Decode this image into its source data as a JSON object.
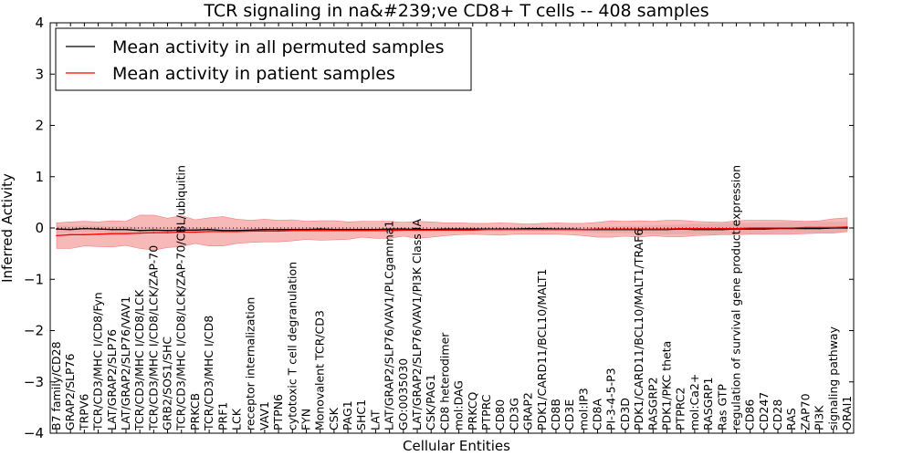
{
  "chart_data": {
    "type": "line",
    "title": "TCR signaling in na&#239;ve CD8+ T cells -- 408 samples",
    "xlabel": "Cellular Entities",
    "ylabel": "Inferred Activity",
    "ylim": [
      -4,
      4
    ],
    "yticks": [
      -4,
      -3,
      -2,
      -1,
      0,
      1,
      2,
      3,
      4
    ],
    "legend": {
      "placement": "top-left",
      "entries": [
        {
          "label": "Mean activity in all permuted samples",
          "color": "#000000"
        },
        {
          "label": "Mean activity in patient samples",
          "color": "#ff0000"
        }
      ]
    },
    "categories": [
      "B7 family/CD28",
      "GRAP2/SLP76",
      "TRPV6",
      "TCR/CD3/MHC I/CD8/Fyn",
      "LAT/GRAP2/SLP76",
      "LAT/GRAP2/SLP76/VAV1",
      "TCR/CD3/MHC I/CD8/LCK",
      "TCR/CD3/MHC I/CD8/LCK/ZAP-70",
      "GRB2/SOS1/SHC",
      "TCR/CD3/MHC I/CD8/LCK/ZAP-70/CBL/ubiquitin",
      "PRKCB",
      "TCR/CD3/MHC I/CD8",
      "PRF1",
      "LCK",
      "receptor internalization",
      "VAV1",
      "PTPN6",
      "cytotoxic T cell degranulation",
      "FYN",
      "Monovalent TCR/CD3",
      "CSK",
      "PAG1",
      "SHC1",
      "LAT",
      "LAT/GRAP2/SLP76/VAV1/PLCgamma1",
      "GO:0035030",
      "LAT/GRAP2/SLP76/VAV1/PI3K Class IA",
      "CSK/PAG1",
      "CD8 heterodimer",
      "mol:DAG",
      "PRKCQ",
      "PTPRC",
      "CD80",
      "CD3G",
      "GRAP2",
      "PDK1/CARD11/BCL10/MALT1",
      "CD8B",
      "CD3E",
      "mol:IP3",
      "CD8A",
      "PI-3-4-5-P3",
      "CD3D",
      "PDK1/CARD11/BCL10/MALT1/TRAF6",
      "RASGRP2",
      "PDK1/PKC theta",
      "PTPRC2",
      "mol:Ca2+",
      "RASGRP1",
      "Ras GTP",
      "regulation of survival gene product expression",
      "CD86",
      "CD247",
      "CD28",
      "RAS",
      "ZAP70",
      "PI3K",
      "signaling pathway",
      "ORAI1"
    ],
    "series": [
      {
        "name": "Mean activity in all permuted samples",
        "color": "#000000",
        "band_color": "#b0b0b0",
        "values": [
          -0.02,
          -0.03,
          -0.01,
          -0.02,
          -0.03,
          -0.03,
          -0.05,
          -0.04,
          -0.05,
          -0.04,
          -0.04,
          -0.03,
          -0.05,
          -0.05,
          -0.04,
          -0.03,
          -0.03,
          -0.03,
          -0.03,
          -0.02,
          -0.03,
          -0.03,
          -0.03,
          -0.03,
          -0.02,
          -0.02,
          -0.03,
          -0.03,
          -0.02,
          -0.02,
          -0.02,
          -0.02,
          -0.02,
          -0.02,
          -0.01,
          -0.01,
          -0.02,
          -0.02,
          -0.03,
          -0.03,
          -0.03,
          -0.03,
          -0.03,
          -0.03,
          -0.03,
          -0.02,
          -0.03,
          -0.03,
          -0.03,
          -0.02,
          -0.02,
          -0.02,
          -0.01,
          -0.01,
          -0.01,
          -0.01,
          0.0,
          0.0
        ],
        "lower": [
          -0.1,
          -0.09,
          -0.08,
          -0.08,
          -0.09,
          -0.1,
          -0.11,
          -0.1,
          -0.1,
          -0.09,
          -0.09,
          -0.08,
          -0.09,
          -0.09,
          -0.08,
          -0.07,
          -0.07,
          -0.06,
          -0.06,
          -0.06,
          -0.06,
          -0.06,
          -0.06,
          -0.06,
          -0.06,
          -0.05,
          -0.06,
          -0.06,
          -0.05,
          -0.05,
          -0.05,
          -0.05,
          -0.05,
          -0.04,
          -0.04,
          -0.04,
          -0.05,
          -0.06,
          -0.08,
          -0.09,
          -0.1,
          -0.1,
          -0.1,
          -0.12,
          -0.13,
          -0.12,
          -0.13,
          -0.13,
          -0.13,
          -0.12,
          -0.11,
          -0.11,
          -0.1,
          -0.1,
          -0.1,
          -0.09,
          -0.09,
          -0.08
        ],
        "upper": [
          0.05,
          0.04,
          0.05,
          0.04,
          0.03,
          0.03,
          0.02,
          0.02,
          0.01,
          0.01,
          0.01,
          0.01,
          0.0,
          0.0,
          0.0,
          0.01,
          0.01,
          0.01,
          0.01,
          0.02,
          0.01,
          0.01,
          0.0,
          0.0,
          0.01,
          0.01,
          0.0,
          0.0,
          0.01,
          0.01,
          0.01,
          0.01,
          0.01,
          0.0,
          0.02,
          0.02,
          0.01,
          0.01,
          0.01,
          0.02,
          0.03,
          0.04,
          0.04,
          0.05,
          0.06,
          0.07,
          0.08,
          0.08,
          0.09,
          0.09,
          0.1,
          0.11,
          0.11,
          0.12,
          0.12,
          0.12,
          0.12,
          0.12
        ]
      },
      {
        "name": "Mean activity in patient samples",
        "color": "#ff0000",
        "band_color": "#f4a0a0",
        "values": [
          -0.15,
          -0.13,
          -0.13,
          -0.12,
          -0.11,
          -0.11,
          -0.1,
          -0.09,
          -0.09,
          -0.08,
          -0.08,
          -0.07,
          -0.07,
          -0.07,
          -0.06,
          -0.06,
          -0.06,
          -0.05,
          -0.05,
          -0.05,
          -0.05,
          -0.05,
          -0.05,
          -0.05,
          -0.05,
          -0.04,
          -0.04,
          -0.04,
          -0.04,
          -0.04,
          -0.04,
          -0.03,
          -0.03,
          -0.03,
          -0.03,
          -0.03,
          -0.03,
          -0.03,
          -0.03,
          -0.02,
          -0.02,
          -0.02,
          -0.02,
          -0.02,
          -0.02,
          -0.01,
          -0.01,
          -0.01,
          -0.01,
          -0.01,
          0.0,
          0.0,
          0.0,
          0.0,
          0.01,
          0.01,
          0.01,
          0.02
        ],
        "lower": [
          -0.4,
          -0.4,
          -0.35,
          -0.36,
          -0.37,
          -0.34,
          -0.4,
          -0.43,
          -0.38,
          -0.36,
          -0.3,
          -0.35,
          -0.35,
          -0.3,
          -0.28,
          -0.27,
          -0.27,
          -0.25,
          -0.22,
          -0.24,
          -0.23,
          -0.22,
          -0.18,
          -0.2,
          -0.2,
          -0.16,
          -0.2,
          -0.18,
          -0.15,
          -0.13,
          -0.12,
          -0.13,
          -0.14,
          -0.12,
          -0.12,
          -0.12,
          -0.12,
          -0.13,
          -0.15,
          -0.18,
          -0.18,
          -0.16,
          -0.18,
          -0.15,
          -0.17,
          -0.17,
          -0.15,
          -0.14,
          -0.13,
          -0.13,
          -0.12,
          -0.12,
          -0.12,
          -0.12,
          -0.11,
          -0.1,
          -0.1,
          -0.07
        ],
        "upper": [
          0.1,
          0.12,
          0.13,
          0.12,
          0.14,
          0.13,
          0.25,
          0.25,
          0.19,
          0.24,
          0.16,
          0.2,
          0.22,
          0.17,
          0.15,
          0.17,
          0.15,
          0.16,
          0.13,
          0.14,
          0.14,
          0.12,
          0.13,
          0.13,
          0.13,
          0.11,
          0.13,
          0.12,
          0.1,
          0.1,
          0.09,
          0.09,
          0.1,
          0.09,
          0.08,
          0.09,
          0.1,
          0.09,
          0.09,
          0.11,
          0.14,
          0.13,
          0.14,
          0.13,
          0.15,
          0.15,
          0.13,
          0.12,
          0.11,
          0.14,
          0.15,
          0.15,
          0.15,
          0.14,
          0.13,
          0.14,
          0.18,
          0.2
        ]
      }
    ],
    "reference_line": {
      "y": 0,
      "style": "dotted"
    }
  }
}
